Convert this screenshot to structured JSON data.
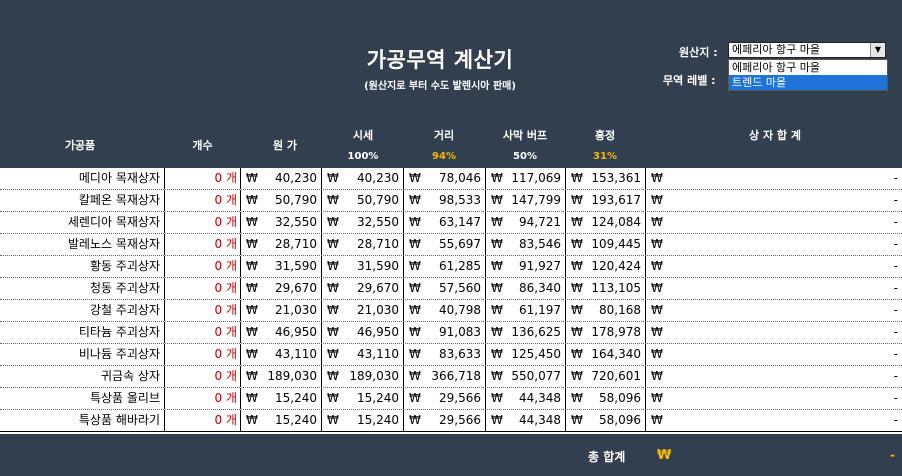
{
  "header": {
    "title": "가공무역 계산기",
    "subtitle": "(원산지로 부터 수도 발렌시아 판매)",
    "origin_label": "원산지 :",
    "trade_level_label": "무역 레벨 :",
    "origin_value": "에페리아 항구 마을",
    "dropdown_options": [
      "에페리아 항구 마을",
      "트렌드 마을"
    ],
    "columns": {
      "item": "가공품",
      "count": "개수",
      "cost": "원 가",
      "market": "시세",
      "distance": "거리",
      "desert": "사막 버프",
      "haggle": "흥정",
      "total": "상 자 합 계"
    },
    "percents": {
      "market": "100%",
      "distance": "94%",
      "desert": "50%",
      "haggle": "31%"
    },
    "colors": {
      "header_bg": "#323f4f",
      "highlight_pct": "#f5b800",
      "count_red": "#c00000",
      "select_highlight": "#1d73d8"
    }
  },
  "currency": "₩",
  "rows": [
    {
      "name": "메디아 목재상자",
      "count": "0 개",
      "cost": "40,230",
      "market": "40,230",
      "distance": "78,046",
      "desert": "117,069",
      "haggle": "153,361",
      "total": "-"
    },
    {
      "name": "칼페온 목재상자",
      "count": "0 개",
      "cost": "50,790",
      "market": "50,790",
      "distance": "98,533",
      "desert": "147,799",
      "haggle": "193,617",
      "total": "-"
    },
    {
      "name": "세렌디아 목재상자",
      "count": "0 개",
      "cost": "32,550",
      "market": "32,550",
      "distance": "63,147",
      "desert": "94,721",
      "haggle": "124,084",
      "total": "-"
    },
    {
      "name": "발레노스 목재상자",
      "count": "0 개",
      "cost": "28,710",
      "market": "28,710",
      "distance": "55,697",
      "desert": "83,546",
      "haggle": "109,445",
      "total": "-"
    },
    {
      "name": "황동 주괴상자",
      "count": "0 개",
      "cost": "31,590",
      "market": "31,590",
      "distance": "61,285",
      "desert": "91,927",
      "haggle": "120,424",
      "total": "-"
    },
    {
      "name": "청동 주괴상자",
      "count": "0 개",
      "cost": "29,670",
      "market": "29,670",
      "distance": "57,560",
      "desert": "86,340",
      "haggle": "113,105",
      "total": "-"
    },
    {
      "name": "강철 주괴상자",
      "count": "0 개",
      "cost": "21,030",
      "market": "21,030",
      "distance": "40,798",
      "desert": "61,197",
      "haggle": "80,168",
      "total": "-"
    },
    {
      "name": "티타늄 주괴상자",
      "count": "0 개",
      "cost": "46,950",
      "market": "46,950",
      "distance": "91,083",
      "desert": "136,625",
      "haggle": "178,978",
      "total": "-"
    },
    {
      "name": "비나듐 주괴상자",
      "count": "0 개",
      "cost": "43,110",
      "market": "43,110",
      "distance": "83,633",
      "desert": "125,450",
      "haggle": "164,340",
      "total": "-"
    },
    {
      "name": "귀금속 상자",
      "count": "0 개",
      "cost": "189,030",
      "market": "189,030",
      "distance": "366,718",
      "desert": "550,077",
      "haggle": "720,601",
      "total": "-"
    },
    {
      "name": "특상품 올리브",
      "count": "0 개",
      "cost": "15,240",
      "market": "15,240",
      "distance": "29,566",
      "desert": "44,348",
      "haggle": "58,096",
      "total": "-"
    },
    {
      "name": "특상품 해바라기",
      "count": "0 개",
      "cost": "15,240",
      "market": "15,240",
      "distance": "29,566",
      "desert": "44,348",
      "haggle": "58,096",
      "total": "-"
    }
  ],
  "footer": {
    "total_label": "총 합계",
    "total_value": "-"
  }
}
